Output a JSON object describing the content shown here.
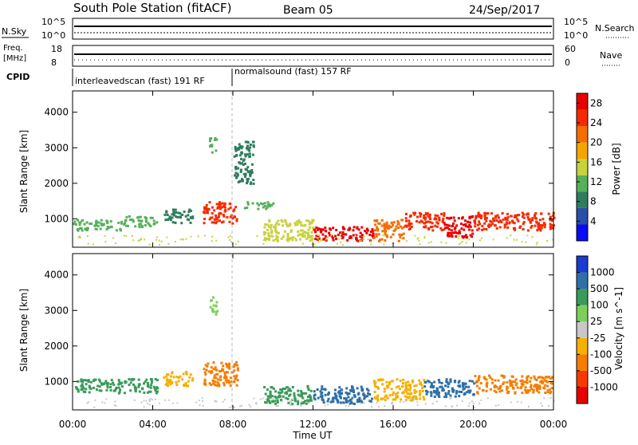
{
  "header": {
    "station": "South Pole Station (fitACF)",
    "beam": "Beam 05",
    "date": "24/Sep/2017"
  },
  "top_panels": {
    "nsky_label": "N.Sky",
    "nsky_tick_top": "10^5",
    "nsky_tick_bottom": "10^0",
    "nsearch_label": "N.Search",
    "nsearch_tick_top": "10^5",
    "nsearch_tick_bottom": "10^0",
    "freq_label_1": "Freq.",
    "freq_label_2": "[MHz]",
    "freq_tick_top": "18",
    "freq_tick_bottom": "8",
    "nave_label": "Nave",
    "nave_tick_top": "60",
    "nave_tick_bottom": "0",
    "cpid_label": "CPID",
    "cpid_1": "interleavedscan (fast) 191 RF",
    "cpid_2": "normalsound (fast) 157 RF"
  },
  "colors": {
    "power_scale": [
      "#0a0af5",
      "#2a4fa8",
      "#2f7d5f",
      "#55b05a",
      "#c8d23c",
      "#f5a500",
      "#f56e00",
      "#f52a00",
      "#e60000"
    ],
    "velocity_scale": [
      "#e60000",
      "#f53a00",
      "#f57d00",
      "#f5b000",
      "#c8c8c8",
      "#7cd05a",
      "#3a9a5a",
      "#2f6fa8",
      "#1a3ad0"
    ]
  },
  "chart_data": [
    {
      "type": "heatmap",
      "name": "power",
      "xlabel": "Time UT",
      "ylabel": "Slant Range [km]",
      "x_range_hours": [
        0,
        24
      ],
      "y_range_km": [
        200,
        4600
      ],
      "x_ticks": [
        "00:00",
        "04:00",
        "08:00",
        "12:00",
        "16:00",
        "20:00",
        "00:00"
      ],
      "y_ticks": [
        1000,
        2000,
        3000,
        4000
      ],
      "colorbar": {
        "label": "Power [dB]",
        "ticks": [
          "4",
          "8",
          "12",
          "16",
          "20",
          "24",
          "28"
        ],
        "range": [
          0,
          30
        ]
      },
      "regions": [
        {
          "t": [
            0.0,
            2.5
          ],
          "r": [
            700,
            1000
          ],
          "value": 12
        },
        {
          "t": [
            2.5,
            4.2
          ],
          "r": [
            800,
            1100
          ],
          "value": 10
        },
        {
          "t": [
            4.5,
            6.0
          ],
          "r": [
            900,
            1300
          ],
          "value": 8
        },
        {
          "t": [
            6.5,
            8.2
          ],
          "r": [
            900,
            1500
          ],
          "value": 24
        },
        {
          "t": [
            6.8,
            7.2
          ],
          "r": [
            2900,
            3300
          ],
          "value": 10
        },
        {
          "t": [
            8.0,
            9.0
          ],
          "r": [
            2000,
            3200
          ],
          "value": 8
        },
        {
          "t": [
            8.5,
            10.0
          ],
          "r": [
            1300,
            1500
          ],
          "value": 10
        },
        {
          "t": [
            9.5,
            12.0
          ],
          "r": [
            400,
            1000
          ],
          "value": 16
        },
        {
          "t": [
            12.0,
            15.0
          ],
          "r": [
            400,
            800
          ],
          "value": 28
        },
        {
          "t": [
            15.0,
            16.5
          ],
          "r": [
            400,
            1000
          ],
          "value": 20
        },
        {
          "t": [
            16.5,
            18.5
          ],
          "r": [
            700,
            1200
          ],
          "value": 24
        },
        {
          "t": [
            18.5,
            20.0
          ],
          "r": [
            500,
            1100
          ],
          "value": 28
        },
        {
          "t": [
            20.0,
            24.0
          ],
          "r": [
            700,
            1200
          ],
          "value": 24
        }
      ]
    },
    {
      "type": "heatmap",
      "name": "velocity",
      "xlabel": "Time UT",
      "ylabel": "Slant Range [km]",
      "x_range_hours": [
        0,
        24
      ],
      "y_range_km": [
        200,
        4600
      ],
      "x_ticks": [
        "00:00",
        "04:00",
        "08:00",
        "12:00",
        "16:00",
        "20:00",
        "00:00"
      ],
      "y_ticks": [
        1000,
        2000,
        3000,
        4000
      ],
      "colorbar": {
        "label": "Velocity [m s^-1]",
        "ticks": [
          "1000",
          "500",
          "100",
          "25",
          "-25",
          "-100",
          "-500",
          "-1000"
        ]
      },
      "regions": [
        {
          "t": [
            0.0,
            4.2
          ],
          "r": [
            700,
            1100
          ],
          "value": 100
        },
        {
          "t": [
            4.5,
            6.0
          ],
          "r": [
            900,
            1300
          ],
          "value": -100
        },
        {
          "t": [
            6.5,
            8.2
          ],
          "r": [
            900,
            1600
          ],
          "value": -500
        },
        {
          "t": [
            6.8,
            7.2
          ],
          "r": [
            2900,
            3400
          ],
          "value": 25
        },
        {
          "t": [
            9.5,
            12.0
          ],
          "r": [
            400,
            900
          ],
          "value": 100
        },
        {
          "t": [
            12.0,
            15.0
          ],
          "r": [
            400,
            900
          ],
          "value": 500
        },
        {
          "t": [
            15.0,
            17.5
          ],
          "r": [
            500,
            1100
          ],
          "value": -100
        },
        {
          "t": [
            17.5,
            20.0
          ],
          "r": [
            600,
            1100
          ],
          "value": 500
        },
        {
          "t": [
            20.0,
            24.0
          ],
          "r": [
            700,
            1200
          ],
          "value": -500
        }
      ]
    }
  ]
}
